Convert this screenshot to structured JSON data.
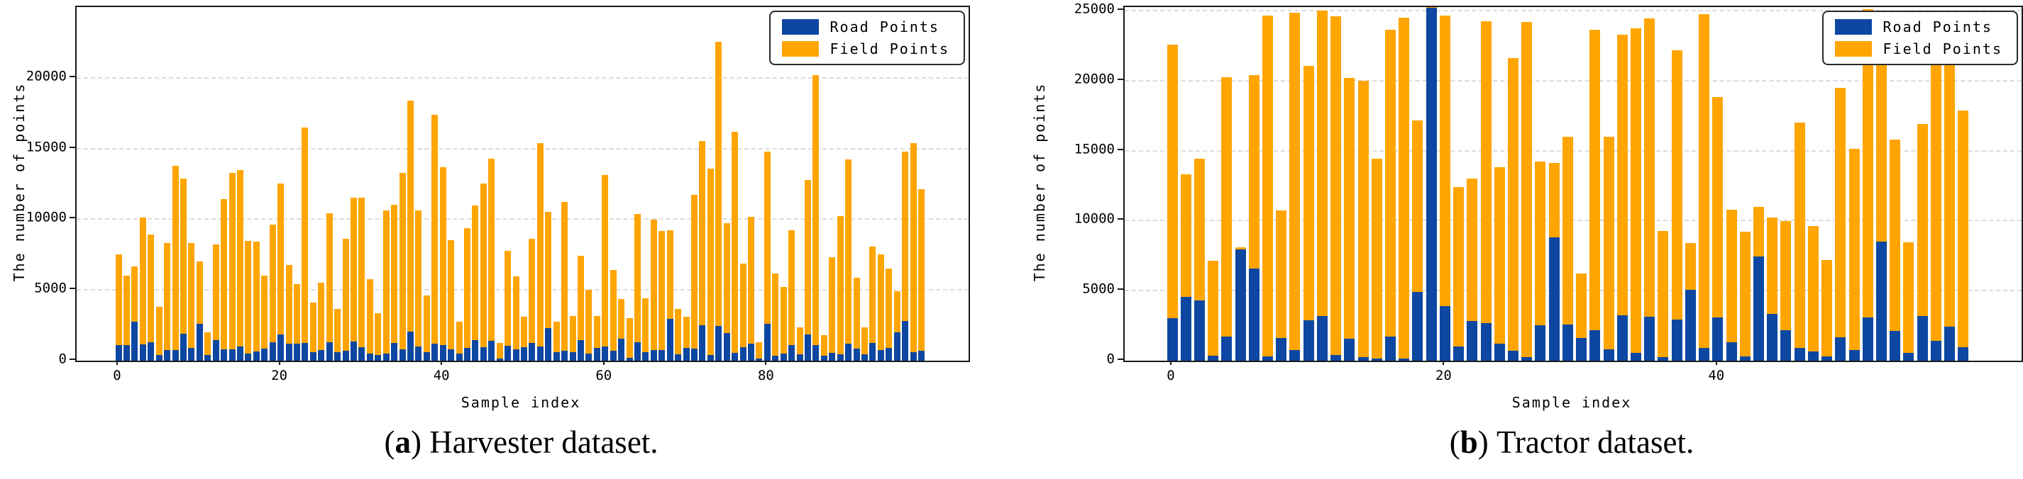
{
  "chart_data": [
    {
      "type": "stacked-bar",
      "caption": {
        "open": "(",
        "letter": "a",
        "close": ")",
        "text": "Harvester dataset."
      },
      "xlabel": "Sample index",
      "ylabel": "The number of points",
      "yticks": [
        0,
        5000,
        10000,
        15000,
        20000
      ],
      "xticks": [
        0,
        20,
        40,
        60,
        80
      ],
      "ylim": [
        0,
        25000
      ],
      "n_samples": 100,
      "legend_position": "upper right",
      "grid": "dashed horizontal",
      "series": [
        {
          "name": "Road Points",
          "color": "#0d47a1",
          "values": [
            1100,
            1100,
            2750,
            1150,
            1300,
            400,
            750,
            750,
            1900,
            900,
            2600,
            400,
            1450,
            800,
            800,
            1000,
            500,
            650,
            850,
            1300,
            1850,
            1200,
            1200,
            1250,
            600,
            750,
            1300,
            600,
            700,
            1350,
            950,
            500,
            400,
            500,
            1250,
            800,
            2050,
            1000,
            600,
            1200,
            1100,
            800,
            500,
            900,
            1450,
            950,
            1400,
            150,
            1050,
            800,
            950,
            1250,
            1000,
            2300,
            600,
            700,
            600,
            1450,
            500,
            900,
            1000,
            700,
            1550,
            200,
            1300,
            600,
            750,
            750,
            2950,
            450,
            900,
            850,
            2500,
            400,
            2450,
            1950,
            550,
            950,
            1200,
            150,
            2600,
            350,
            500,
            1100,
            450,
            1850,
            1100,
            350,
            550,
            450,
            1200,
            850,
            450,
            1250,
            750,
            900,
            2000,
            2800,
            600,
            700
          ]
        },
        {
          "name": "Field Points",
          "color": "#ffa502",
          "values": [
            6400,
            4900,
            3900,
            8950,
            7600,
            3400,
            7550,
            13050,
            11000,
            7400,
            4400,
            1600,
            6750,
            10600,
            12500,
            12500,
            7950,
            7750,
            5150,
            8300,
            10700,
            5550,
            4200,
            15250,
            3500,
            4750,
            9100,
            3050,
            7900,
            10150,
            10550,
            5250,
            2950,
            10100,
            9750,
            12500,
            16350,
            9600,
            4000,
            16200,
            12600,
            7700,
            2250,
            8450,
            9500,
            11600,
            12900,
            1100,
            6700,
            5150,
            2150,
            7350,
            14400,
            8200,
            2150,
            10500,
            2550,
            5950,
            4500,
            2250,
            12150,
            5700,
            2800,
            2800,
            9050,
            3800,
            9200,
            8400,
            6250,
            3200,
            2200,
            10850,
            13050,
            13200,
            20100,
            7750,
            15650,
            5900,
            8950,
            1150,
            12200,
            5800,
            4700,
            8100,
            1900,
            10950,
            19100,
            1450,
            6750,
            9750,
            13050,
            5000,
            1900,
            6800,
            6750,
            5600,
            2900,
            12000,
            14800,
            11450
          ]
        }
      ]
    },
    {
      "type": "stacked-bar",
      "caption": {
        "open": "(",
        "letter": "b",
        "close": ")",
        "text": "Tractor dataset."
      },
      "xlabel": "Sample index",
      "ylabel": "The number of points",
      "yticks": [
        0,
        5000,
        10000,
        15000,
        20000,
        25000
      ],
      "xticks": [
        0,
        20,
        40
      ],
      "ylim": [
        0,
        25250
      ],
      "n_samples": 59,
      "legend_position": "upper right",
      "grid": "dashed horizontal",
      "series": [
        {
          "name": "Road Points",
          "color": "#0d47a1",
          "values": [
            3050,
            4550,
            4300,
            350,
            1700,
            7950,
            6600,
            300,
            1600,
            750,
            2900,
            3200,
            400,
            1550,
            250,
            150,
            1700,
            150,
            4900,
            25200,
            3900,
            1000,
            2850,
            2700,
            1200,
            700,
            250,
            2550,
            8800,
            2600,
            1600,
            2200,
            800,
            3250,
            550,
            3150,
            250,
            2950,
            5050,
            900,
            3100,
            1300,
            300,
            7450,
            3350,
            2200,
            900,
            650,
            300,
            1650,
            750,
            3100,
            8500,
            2150,
            550,
            3200,
            1400,
            2450,
            950
          ]
        },
        {
          "name": "Field Points",
          "color": "#ffa502",
          "values": [
            19500,
            8750,
            10100,
            6800,
            18550,
            150,
            13800,
            24350,
            9150,
            24100,
            18150,
            21800,
            24200,
            18650,
            19750,
            14250,
            21950,
            24350,
            12250,
            100,
            20750,
            11400,
            10150,
            21550,
            12600,
            20900,
            23950,
            11650,
            5300,
            13400,
            4600,
            21450,
            15200,
            20050,
            23200,
            21300,
            9000,
            19200,
            3350,
            23850,
            15700,
            9500,
            8900,
            3550,
            6850,
            7750,
            16100,
            8950,
            6900,
            17850,
            14400,
            22000,
            16150,
            13650,
            7900,
            13700,
            22050,
            19050,
            16900
          ]
        }
      ]
    }
  ]
}
